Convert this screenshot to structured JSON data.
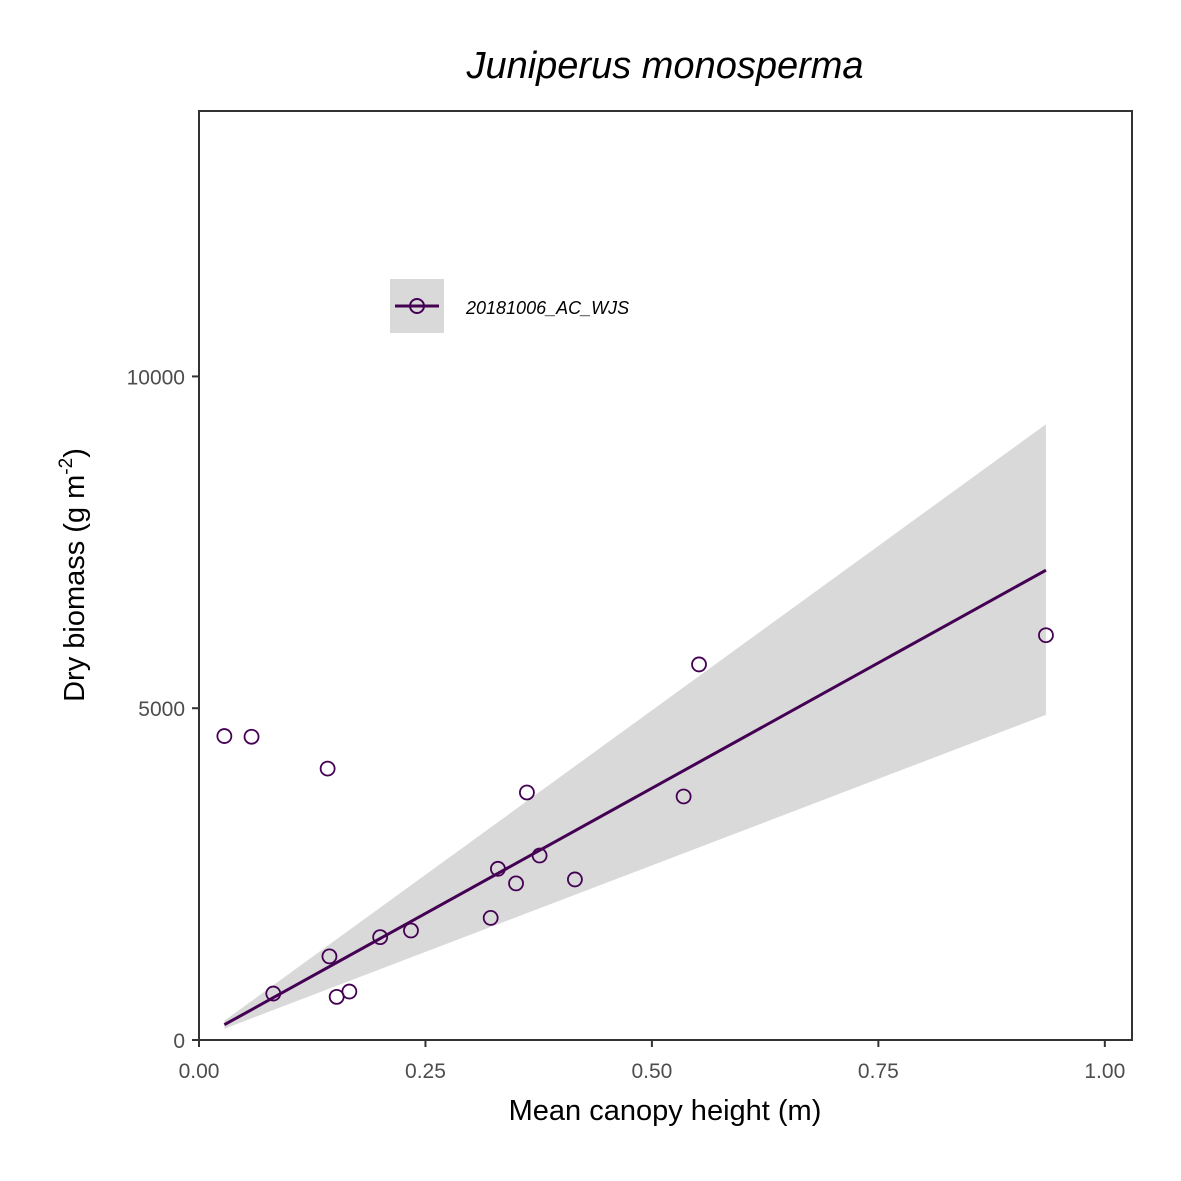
{
  "chart_data": {
    "type": "scatter",
    "title": "Juniperus monosperma",
    "xlabel": "Mean canopy height (m)",
    "ylabel_text": "Dry biomass (g m",
    "ylabel_sup": "-2",
    "ylabel_close": ")",
    "xlim": [
      0,
      1.03
    ],
    "ylim": [
      0,
      14000
    ],
    "x_ticks": [
      0,
      0.25,
      0.5,
      0.75,
      1.0
    ],
    "x_tick_labels": [
      "0.00",
      "0.25",
      "0.50",
      "0.75",
      "1.00"
    ],
    "y_ticks": [
      0,
      5000,
      10000
    ],
    "y_tick_labels": [
      "0",
      "5000",
      "10000"
    ],
    "grid": false,
    "legend_position": "top-left",
    "series": [
      {
        "name": "20181006_AC_WJS",
        "color": "#440154",
        "points": [
          {
            "x": 0.028,
            "y": 4580
          },
          {
            "x": 0.058,
            "y": 4570
          },
          {
            "x": 0.142,
            "y": 4090
          },
          {
            "x": 0.082,
            "y": 700
          },
          {
            "x": 0.144,
            "y": 1260
          },
          {
            "x": 0.152,
            "y": 650
          },
          {
            "x": 0.166,
            "y": 730
          },
          {
            "x": 0.2,
            "y": 1550
          },
          {
            "x": 0.234,
            "y": 1650
          },
          {
            "x": 0.322,
            "y": 1840
          },
          {
            "x": 0.33,
            "y": 2580
          },
          {
            "x": 0.35,
            "y": 2360
          },
          {
            "x": 0.362,
            "y": 3730
          },
          {
            "x": 0.376,
            "y": 2780
          },
          {
            "x": 0.415,
            "y": 2420
          },
          {
            "x": 0.535,
            "y": 3670
          },
          {
            "x": 0.552,
            "y": 5660
          },
          {
            "x": 0.935,
            "y": 6100
          }
        ],
        "fit": {
          "x": [
            0.028,
            0.935
          ],
          "y": [
            230,
            7080
          ],
          "ci_lower": [
            170,
            4900
          ],
          "ci_upper": [
            290,
            9280
          ]
        }
      }
    ],
    "ribbon_color": "#d9d9d9"
  }
}
